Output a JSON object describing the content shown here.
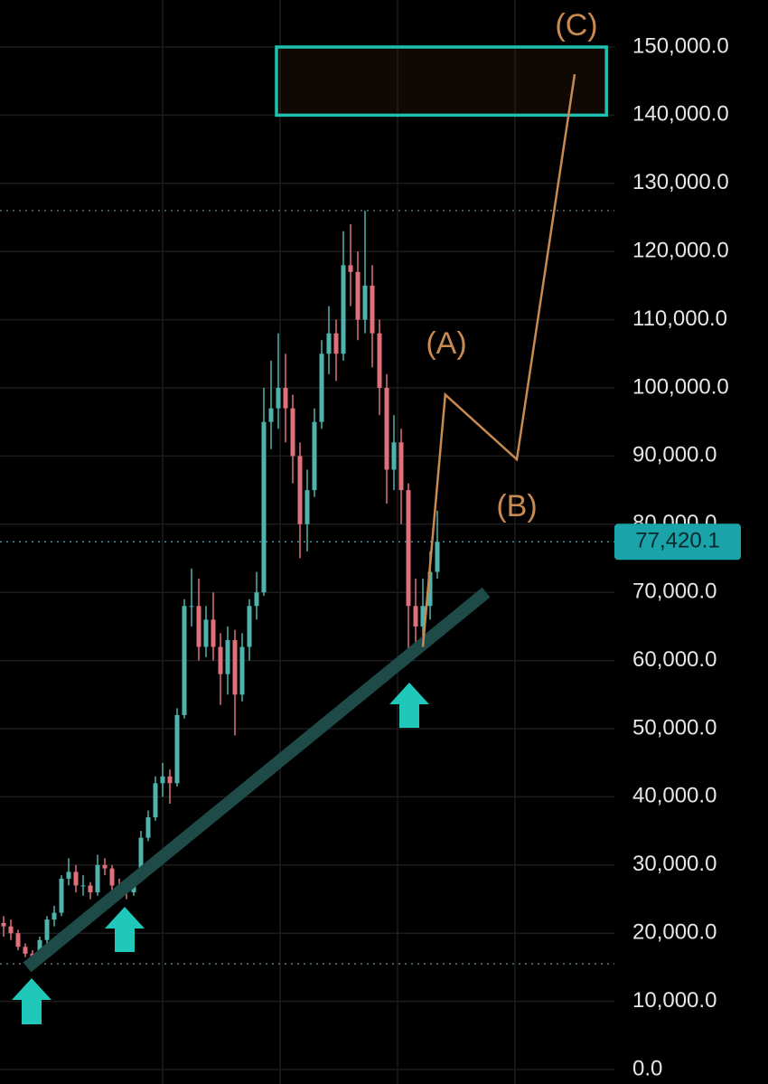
{
  "chart_data": {
    "type": "candlestick",
    "up_color": "#4fb3ad",
    "down_color": "#e0707a",
    "xlim": [
      -0.5,
      84.5
    ],
    "ylim": [
      0,
      150000
    ],
    "yticks": [
      {
        "value": 0,
        "label": "0.0"
      },
      {
        "value": 10000,
        "label": "10,000.0"
      },
      {
        "value": 20000,
        "label": "20,000.0"
      },
      {
        "value": 30000,
        "label": "30,000.0"
      },
      {
        "value": 40000,
        "label": "40,000.0"
      },
      {
        "value": 50000,
        "label": "50,000.0"
      },
      {
        "value": 60000,
        "label": "60,000.0"
      },
      {
        "value": 70000,
        "label": "70,000.0"
      },
      {
        "value": 80000,
        "label": "80,000.0"
      },
      {
        "value": 90000,
        "label": "90,000.0"
      },
      {
        "value": 100000,
        "label": "100,000.0"
      },
      {
        "value": 110000,
        "label": "110,000.0"
      },
      {
        "value": 120000,
        "label": "120,000.0"
      },
      {
        "value": 130000,
        "label": "130,000.0"
      },
      {
        "value": 140000,
        "label": "140,000.0"
      },
      {
        "value": 150000,
        "label": "150,000.0"
      }
    ],
    "grid": true,
    "ohlc": [
      [
        21500,
        22500,
        19500,
        21000
      ],
      [
        21000,
        22000,
        19000,
        20000
      ],
      [
        20000,
        20500,
        17500,
        18000
      ],
      [
        18000,
        18500,
        16500,
        17000
      ],
      [
        17000,
        17500,
        15500,
        16500
      ],
      [
        16500,
        19500,
        16000,
        19000
      ],
      [
        19000,
        22500,
        18500,
        22000
      ],
      [
        22000,
        24000,
        21000,
        23000
      ],
      [
        23000,
        28500,
        22500,
        28000
      ],
      [
        28000,
        31000,
        27000,
        29000
      ],
      [
        29000,
        30000,
        26000,
        27000
      ],
      [
        27000,
        28500,
        25500,
        27000
      ],
      [
        27000,
        27500,
        25000,
        26000
      ],
      [
        26000,
        31500,
        25500,
        30000
      ],
      [
        30000,
        31000,
        28500,
        29500
      ],
      [
        29500,
        30000,
        26000,
        27000
      ],
      [
        27000,
        28000,
        25500,
        26500
      ],
      [
        26500,
        27000,
        25000,
        26000
      ],
      [
        26000,
        28500,
        25500,
        28000
      ],
      [
        28000,
        35000,
        27500,
        34000
      ],
      [
        34000,
        38000,
        33500,
        37000
      ],
      [
        37000,
        43000,
        36500,
        42000
      ],
      [
        42000,
        45000,
        40000,
        43000
      ],
      [
        43000,
        44000,
        39000,
        42000
      ],
      [
        42000,
        53000,
        41500,
        52000
      ],
      [
        52000,
        69000,
        51500,
        68000
      ],
      [
        68000,
        73500,
        65000,
        68000
      ],
      [
        68000,
        72000,
        60000,
        62000
      ],
      [
        62000,
        68000,
        60500,
        66000
      ],
      [
        66000,
        70000,
        60000,
        62000
      ],
      [
        62000,
        64000,
        53500,
        58000
      ],
      [
        58000,
        65000,
        55000,
        63000
      ],
      [
        63000,
        64500,
        49000,
        55000
      ],
      [
        55000,
        64000,
        54000,
        62000
      ],
      [
        62000,
        69000,
        60000,
        68000
      ],
      [
        68000,
        73000,
        66000,
        70000
      ],
      [
        70000,
        100000,
        69500,
        95000
      ],
      [
        95000,
        104000,
        91000,
        97000
      ],
      [
        97000,
        108000,
        94000,
        100000
      ],
      [
        100000,
        105000,
        92000,
        97000
      ],
      [
        97000,
        99000,
        86000,
        90000
      ],
      [
        90000,
        92000,
        75000,
        80000
      ],
      [
        80000,
        88000,
        76000,
        85000
      ],
      [
        85000,
        97000,
        84000,
        95000
      ],
      [
        95000,
        107000,
        94000,
        105000
      ],
      [
        105000,
        112000,
        102000,
        108000
      ],
      [
        108000,
        110000,
        101000,
        105000
      ],
      [
        105000,
        123000,
        104000,
        118000
      ],
      [
        118000,
        124000,
        112000,
        117000
      ],
      [
        117000,
        120000,
        107000,
        110000
      ],
      [
        110000,
        126000,
        108000,
        115000
      ],
      [
        115000,
        118000,
        103000,
        108000
      ],
      [
        108000,
        110000,
        96000,
        100000
      ],
      [
        100000,
        102000,
        83000,
        88000
      ],
      [
        88000,
        96000,
        85000,
        92000
      ],
      [
        92000,
        94000,
        80000,
        85000
      ],
      [
        85000,
        86000,
        60000,
        68000
      ],
      [
        68000,
        72000,
        62000,
        65000
      ],
      [
        65000,
        72000,
        62000,
        68000
      ],
      [
        68000,
        76000,
        66000,
        73000
      ],
      [
        73000,
        82000,
        72000,
        77420.1
      ]
    ],
    "levels": [
      126000,
      15500
    ],
    "last_price": {
      "value": 77420.1,
      "label": "77,420.1"
    },
    "target_box": {
      "x": [
        37.75,
        83.4
      ],
      "y": [
        140000,
        150000
      ],
      "color": "#1fc0b0"
    },
    "trendline": {
      "x": [
        3.25,
        66.75
      ],
      "y": [
        15000,
        70000
      ],
      "color": "#1e4b48"
    },
    "wave": {
      "x": [
        58,
        61.1,
        71,
        79
      ],
      "y": [
        62000,
        99000,
        89500,
        146000
      ],
      "color": "#c98a52"
    },
    "wave_labels": [
      "(A)",
      "(B)",
      "(C)"
    ]
  }
}
